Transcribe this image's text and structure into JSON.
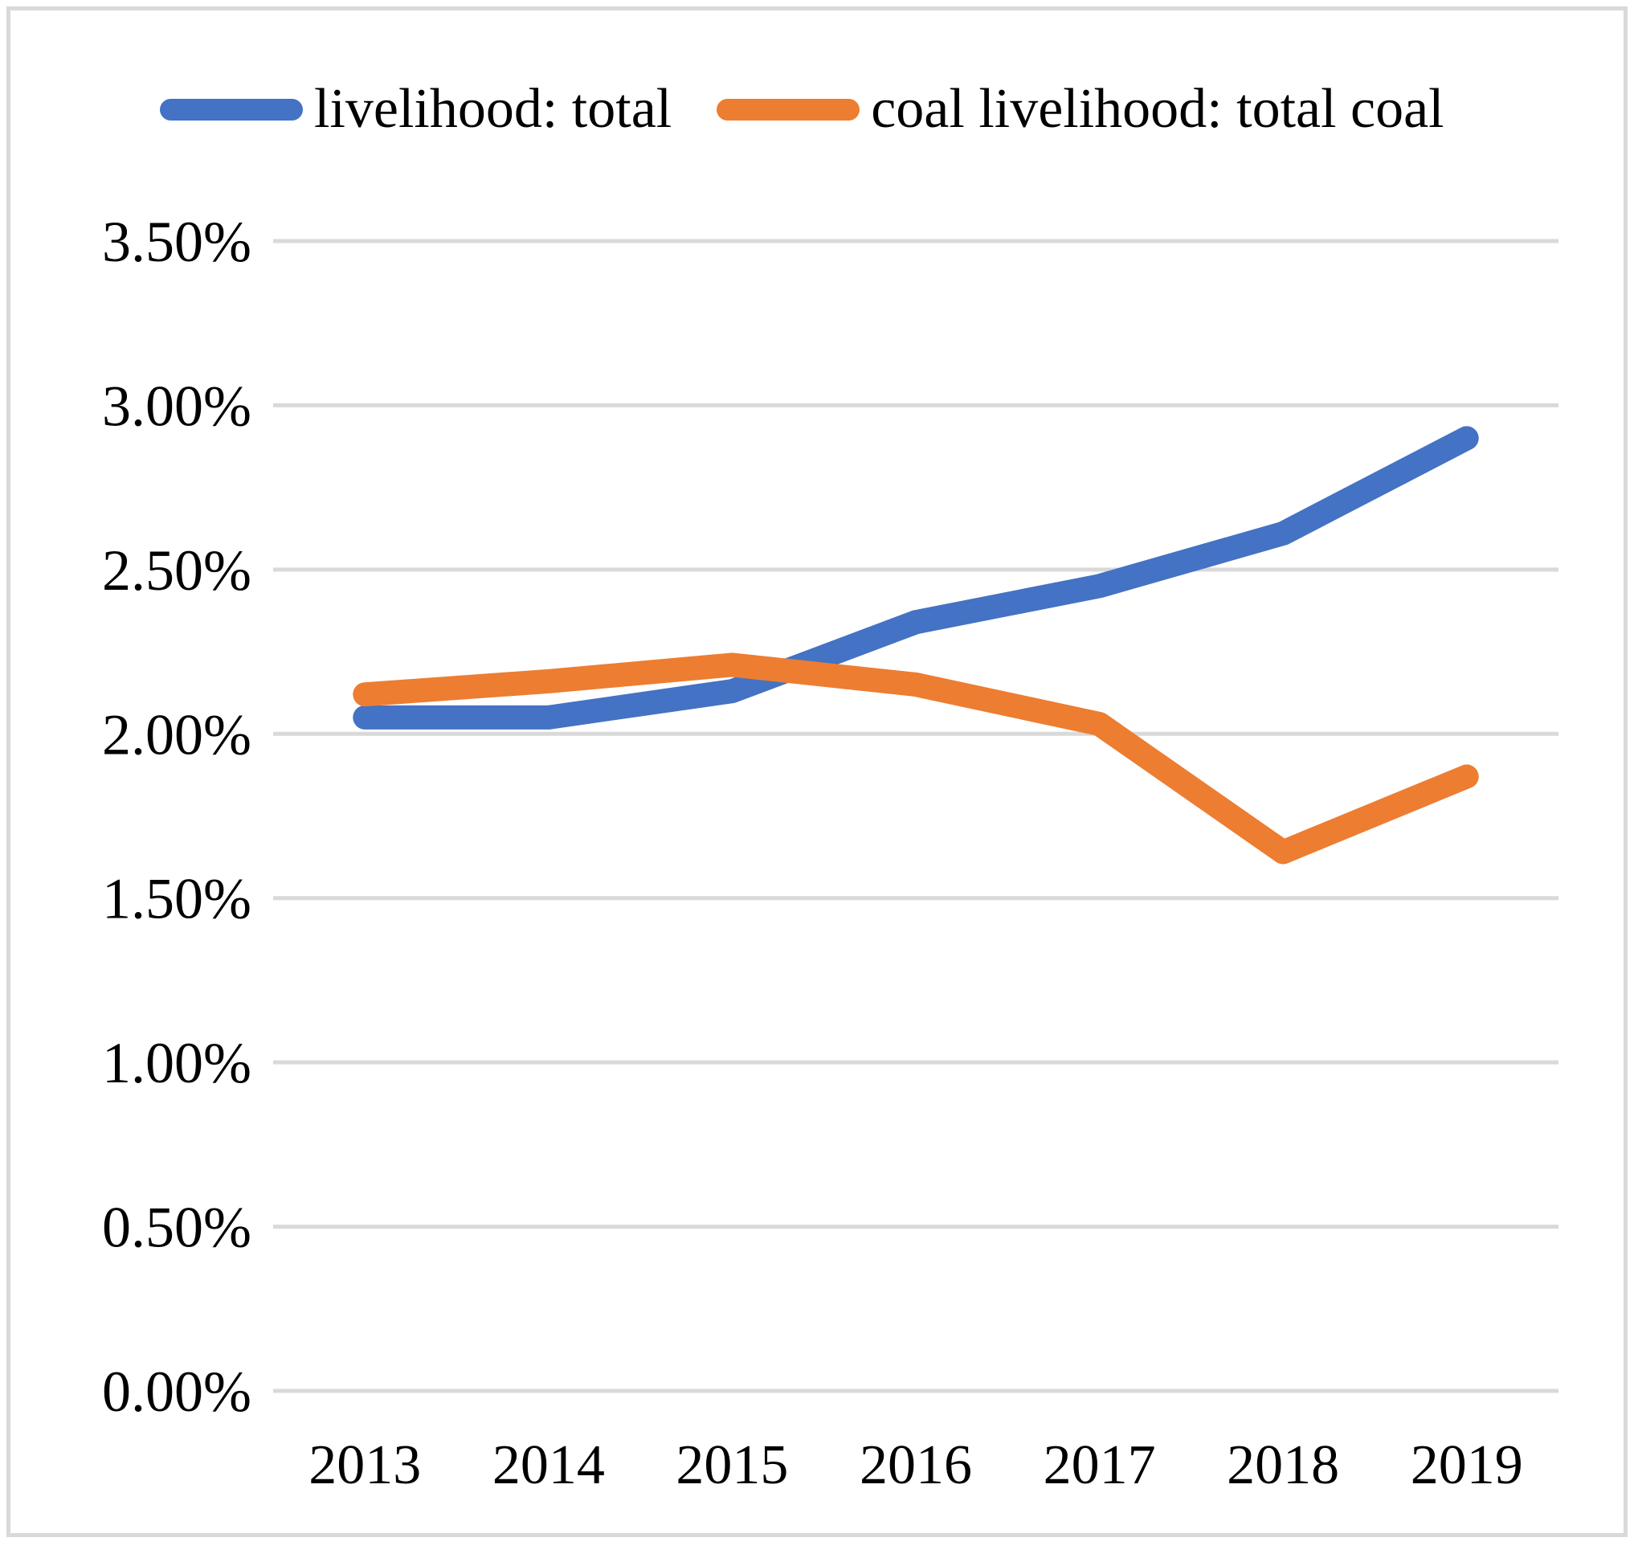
{
  "frame": {
    "border_color": "#d9d9d9",
    "background_color": "#ffffff"
  },
  "legend": {
    "position": "top",
    "items": [
      {
        "label": "livelihood: total",
        "color": "#4472c4"
      },
      {
        "label": "coal livelihood: total coal",
        "color": "#ed7d31"
      }
    ]
  },
  "chart_data": {
    "type": "line",
    "title": "",
    "xlabel": "",
    "ylabel": "",
    "categories": [
      "2013",
      "2014",
      "2015",
      "2016",
      "2017",
      "2018",
      "2019"
    ],
    "series": [
      {
        "name": "livelihood: total",
        "color": "#4472c4",
        "values": [
          2.05,
          2.05,
          2.13,
          2.34,
          2.45,
          2.61,
          2.9
        ]
      },
      {
        "name": "coal livelihood: total coal",
        "color": "#ed7d31",
        "values": [
          2.12,
          2.16,
          2.21,
          2.15,
          2.03,
          1.64,
          1.87
        ]
      }
    ],
    "y_ticks": [
      "3.50%",
      "3.00%",
      "2.50%",
      "2.00%",
      "1.50%",
      "1.00%",
      "0.50%",
      "0.00%"
    ],
    "y_tick_values": [
      3.5,
      3.0,
      2.5,
      2.0,
      1.5,
      1.0,
      0.5,
      0.0
    ],
    "ylim": [
      0,
      3.5
    ],
    "grid": true,
    "gridline_color": "#d9d9d9",
    "axis_text_color": "#000000",
    "legend_position": "top"
  }
}
